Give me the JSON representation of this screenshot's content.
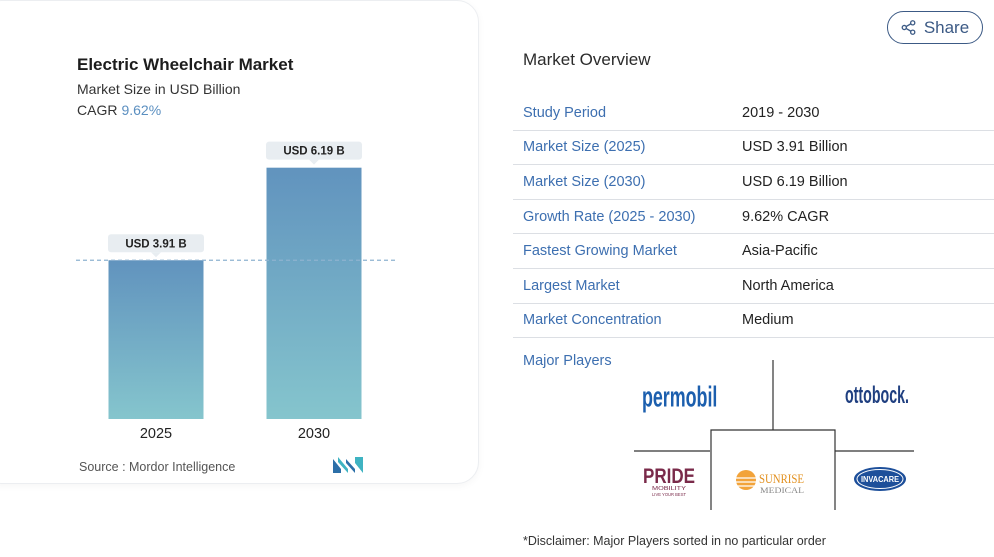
{
  "chart_data": {
    "type": "bar",
    "title": "Electric Wheelchair Market",
    "subtitle": "Market Size in USD Billion",
    "cagr_label": "CAGR",
    "cagr_value": "9.62%",
    "categories": [
      "2025",
      "2030"
    ],
    "values": [
      3.91,
      6.19
    ],
    "data_labels": [
      "USD 3.91 B",
      "USD 6.19 B"
    ],
    "colors": {
      "bar_top": "#6193be",
      "bar_bottom": "#85c5cd",
      "ref_line": "#8fb3d0",
      "label_bg": "#e8edf1"
    },
    "grid": false,
    "legend": "none"
  },
  "source": "Source :  Mordor Intelligence",
  "share": {
    "label": "Share",
    "icon": "share-icon"
  },
  "overview": {
    "title": "Market Overview",
    "rows": [
      {
        "key": "Study Period",
        "value": "2019 - 2030"
      },
      {
        "key": "Market Size (2025)",
        "value": "USD 3.91 Billion"
      },
      {
        "key": "Market Size (2030)",
        "value": "USD 6.19 Billion"
      },
      {
        "key": "Growth Rate (2025 - 2030)",
        "value": "9.62% CAGR"
      },
      {
        "key": "Fastest Growing Market",
        "value": "Asia-Pacific"
      },
      {
        "key": "Largest Market",
        "value": "North America"
      },
      {
        "key": "Market Concentration",
        "value": "Medium"
      }
    ]
  },
  "players": {
    "label": "Major Players",
    "logos": [
      "permobil",
      "ottobock.",
      "PRIDE",
      "MOBILITY",
      "LIVE YOUR BEST",
      "SUNRISE",
      "MEDICAL",
      "INVACARE"
    ]
  },
  "disclaimer": "*Disclaimer: Major Players sorted in no particular order",
  "accent": "#3d6fb0"
}
